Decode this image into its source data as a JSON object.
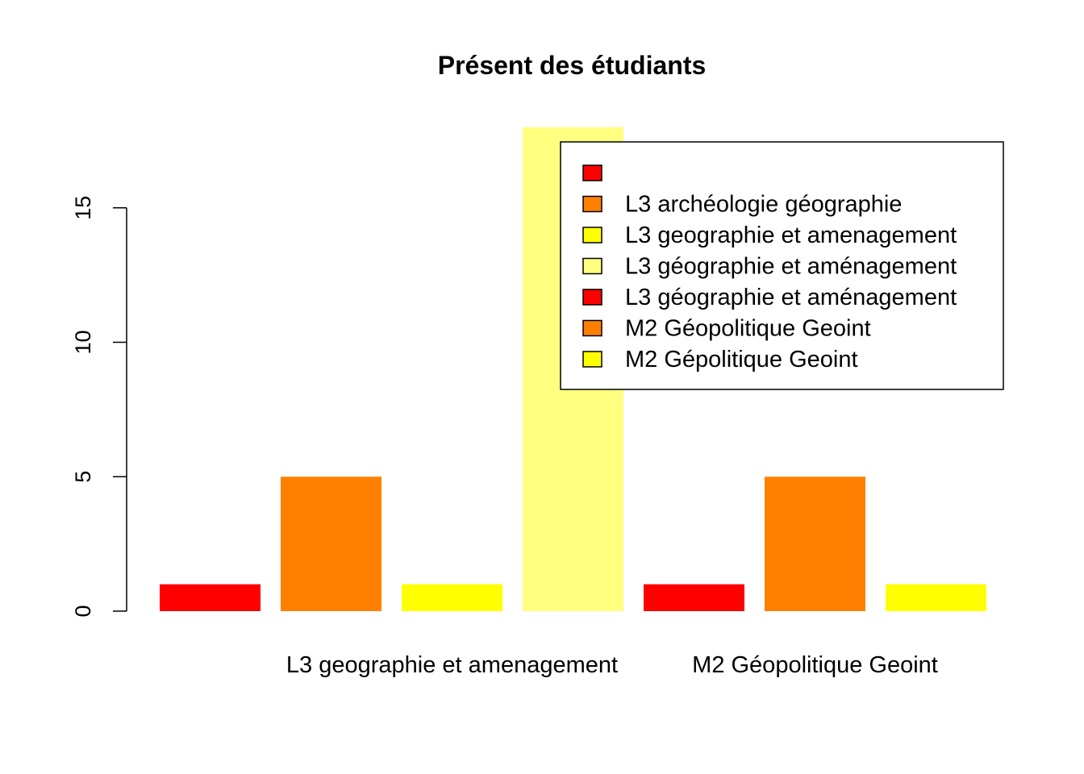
{
  "chart_data": {
    "type": "bar",
    "title": "Présent des étudiants",
    "xlabel": "",
    "ylabel": "",
    "ylim": [
      0,
      18
    ],
    "y_ticks": [
      0,
      5,
      10,
      15
    ],
    "grid": false,
    "legend_position": "top-right",
    "categories": [
      "",
      "L3 archéologie géographie",
      "L3 geographie et amenagement",
      "L3 géographie et aménagement",
      "L3 géographie et aménagement",
      "M2 Géopolitique Geoint",
      "M2 Gépolitique Geoint"
    ],
    "values": [
      1,
      5,
      1,
      18,
      1,
      5,
      1
    ],
    "colors": [
      "#FF0000",
      "#FF8000",
      "#FFFF00",
      "#FFFF80",
      "#FF0000",
      "#FF8000",
      "#FFFF00"
    ],
    "x_tick_labels": [
      {
        "bar_index": 2,
        "label": "L3 geographie et amenagement"
      },
      {
        "bar_index": 5,
        "label": "M2 Géopolitique Geoint"
      }
    ]
  }
}
